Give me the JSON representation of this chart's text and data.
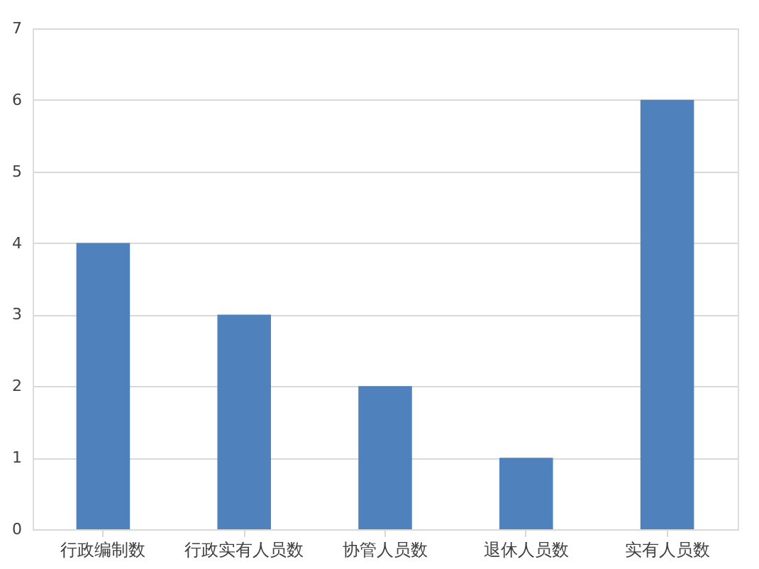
{
  "chart_data": {
    "type": "bar",
    "categories": [
      "行政编制数",
      "行政实有人员数",
      "协管人员数",
      "退休人员数",
      "实有人员数"
    ],
    "values": [
      4,
      3,
      2,
      1,
      6
    ],
    "color": "#4f81bd",
    "ylim": [
      0,
      7
    ],
    "yticks": [
      0,
      1,
      2,
      3,
      4,
      5,
      6,
      7
    ],
    "grid": "y"
  }
}
